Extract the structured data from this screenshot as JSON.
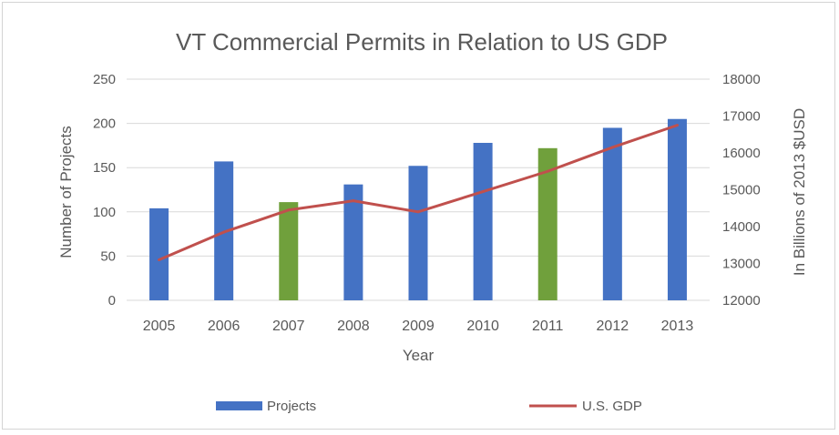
{
  "chart_data": {
    "type": "bar",
    "title": "VT Commercial Permits in Relation to US GDP",
    "xlabel": "Year",
    "ylabel": "Number of Projects",
    "y2label": "In Billions of 2013 $USD",
    "categories": [
      "2005",
      "2006",
      "2007",
      "2008",
      "2009",
      "2010",
      "2011",
      "2012",
      "2013"
    ],
    "ylim": [
      0,
      250
    ],
    "yticks": [
      0,
      50,
      100,
      150,
      200,
      250
    ],
    "y2lim": [
      12000,
      18000
    ],
    "y2ticks": [
      12000,
      13000,
      14000,
      15000,
      16000,
      17000,
      18000
    ],
    "grid": true,
    "legend_position": "bottom",
    "series": [
      {
        "name": "Projects",
        "type": "bar",
        "axis": "left",
        "color": "#4472c4",
        "highlight_color": "#70a03c",
        "highlight_categories": [
          "2007",
          "2011"
        ],
        "values": [
          104,
          157,
          111,
          131,
          152,
          178,
          172,
          195,
          205
        ]
      },
      {
        "name": "U.S. GDP",
        "type": "line",
        "axis": "right",
        "color": "#c0504d",
        "values": [
          13100,
          13850,
          14450,
          14700,
          14400,
          14950,
          15500,
          16150,
          16750
        ]
      }
    ]
  }
}
